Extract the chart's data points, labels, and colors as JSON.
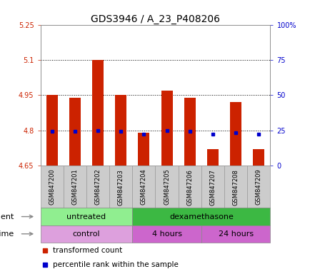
{
  "title": "GDS3946 / A_23_P408206",
  "samples": [
    "GSM847200",
    "GSM847201",
    "GSM847202",
    "GSM847203",
    "GSM847204",
    "GSM847205",
    "GSM847206",
    "GSM847207",
    "GSM847208",
    "GSM847209"
  ],
  "red_values": [
    4.95,
    4.94,
    5.1,
    4.95,
    4.79,
    4.97,
    4.94,
    4.72,
    4.92,
    4.72
  ],
  "blue_values": [
    4.795,
    4.795,
    4.8,
    4.795,
    4.785,
    4.8,
    4.795,
    4.785,
    4.79,
    4.785
  ],
  "bar_bottom": 4.65,
  "ylim_left": [
    4.65,
    5.25
  ],
  "ylim_right": [
    0,
    100
  ],
  "yticks_left": [
    4.65,
    4.8,
    4.95,
    5.1,
    5.25
  ],
  "ytick_labels_left": [
    "4.65",
    "4.8",
    "4.95",
    "5.1",
    "5.25"
  ],
  "yticks_right": [
    0,
    25,
    50,
    75,
    100
  ],
  "ytick_labels_right": [
    "0",
    "25",
    "50",
    "75",
    "100%"
  ],
  "hlines": [
    4.8,
    4.95,
    5.1
  ],
  "agent_groups": [
    {
      "label": "untreated",
      "start": 0,
      "end": 4,
      "color": "#90EE90"
    },
    {
      "label": "dexamethasone",
      "start": 4,
      "end": 10,
      "color": "#3CB843"
    }
  ],
  "time_groups": [
    {
      "label": "control",
      "start": 0,
      "end": 4,
      "color": "#DDA0DD"
    },
    {
      "label": "4 hours",
      "start": 4,
      "end": 7,
      "color": "#CC66CC"
    },
    {
      "label": "24 hours",
      "start": 7,
      "end": 10,
      "color": "#CC66CC"
    }
  ],
  "red_color": "#CC2200",
  "blue_color": "#0000CC",
  "bar_width": 0.5,
  "legend_red": "transformed count",
  "legend_blue": "percentile rank within the sample",
  "agent_label": "agent",
  "time_label": "time",
  "title_fontsize": 10,
  "tick_fontsize": 7,
  "label_fontsize": 8,
  "sample_fontsize": 6,
  "bg_color": "#FFFFFF",
  "n_samples": 10
}
